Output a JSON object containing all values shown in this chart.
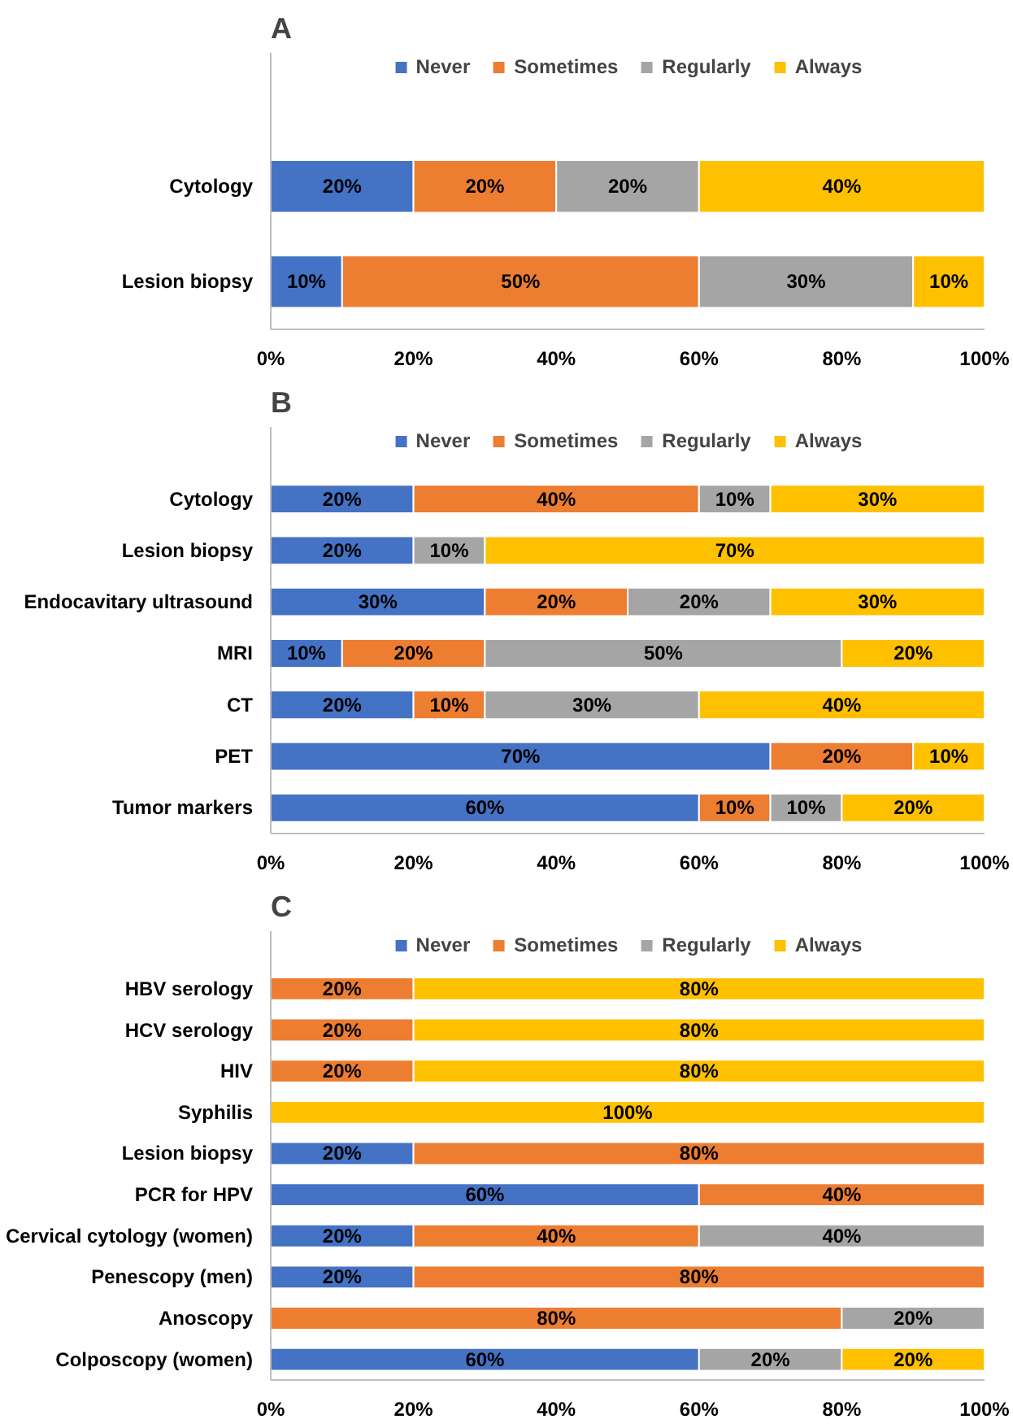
{
  "chart_data": [
    {
      "type": "bar",
      "title": "A",
      "orientation": "horizontal",
      "stacked": true,
      "legend": "top",
      "grid": false,
      "categories": [
        "Cytology",
        "Lesion biopsy"
      ],
      "xlim": [
        0,
        100
      ],
      "xticks": [
        {
          "value": 0,
          "label": "0%"
        },
        {
          "value": 20,
          "label": "20%"
        },
        {
          "value": 40,
          "label": "40%"
        },
        {
          "value": 60,
          "label": "60%"
        },
        {
          "value": 80,
          "label": "80%"
        },
        {
          "value": 100,
          "label": "100%"
        }
      ],
      "series": [
        {
          "name": "Never",
          "color": "#4472c4",
          "values": [
            20,
            10
          ],
          "value_labels": [
            "20%",
            "10%"
          ]
        },
        {
          "name": "Sometimes",
          "color": "#ed7d31",
          "values": [
            20,
            50
          ],
          "value_labels": [
            "20%",
            "50%"
          ]
        },
        {
          "name": "Regularly",
          "color": "#a5a5a5",
          "values": [
            20,
            30
          ],
          "value_labels": [
            "20%",
            "30%"
          ]
        },
        {
          "name": "Always",
          "color": "#ffc000",
          "values": [
            40,
            10
          ],
          "value_labels": [
            "40%",
            "10%"
          ]
        }
      ]
    },
    {
      "type": "bar",
      "title": "B",
      "orientation": "horizontal",
      "stacked": true,
      "legend": "top",
      "grid": false,
      "categories": [
        "Cytology",
        "Lesion biopsy",
        "Endocavitary ultrasound",
        "MRI",
        "CT",
        "PET",
        "Tumor markers"
      ],
      "xlim": [
        0,
        100
      ],
      "xticks": [
        {
          "value": 0,
          "label": "0%"
        },
        {
          "value": 20,
          "label": "20%"
        },
        {
          "value": 40,
          "label": "40%"
        },
        {
          "value": 60,
          "label": "60%"
        },
        {
          "value": 80,
          "label": "80%"
        },
        {
          "value": 100,
          "label": "100%"
        }
      ],
      "series": [
        {
          "name": "Never",
          "color": "#4472c4",
          "values": [
            20,
            20,
            30,
            10,
            20,
            70,
            60
          ],
          "value_labels": [
            "20%",
            "20%",
            "30%",
            "10%",
            "20%",
            "70%",
            "60%"
          ]
        },
        {
          "name": "Sometimes",
          "color": "#ed7d31",
          "values": [
            40,
            0,
            20,
            20,
            10,
            20,
            10
          ],
          "value_labels": [
            "40%",
            null,
            "20%",
            "20%",
            "10%",
            "20%",
            "10%"
          ]
        },
        {
          "name": "Regularly",
          "color": "#a5a5a5",
          "values": [
            10,
            10,
            20,
            50,
            30,
            0,
            10
          ],
          "value_labels": [
            "10%",
            "10%",
            "20%",
            "50%",
            "30%",
            null,
            "10%"
          ]
        },
        {
          "name": "Always",
          "color": "#ffc000",
          "values": [
            30,
            70,
            30,
            20,
            40,
            10,
            20
          ],
          "value_labels": [
            "30%",
            "70%",
            "30%",
            "20%",
            "40%",
            "10%",
            "20%"
          ]
        }
      ]
    },
    {
      "type": "bar",
      "title": "C",
      "orientation": "horizontal",
      "stacked": true,
      "legend": "top",
      "grid": false,
      "categories": [
        "HBV serology",
        "HCV serology",
        "HIV",
        "Syphilis",
        "Lesion biopsy",
        "PCR for HPV",
        "Cervical cytology (women)",
        "Penescopy (men)",
        "Anoscopy",
        "Colposcopy (women)"
      ],
      "xlim": [
        0,
        100
      ],
      "xticks": [
        {
          "value": 0,
          "label": "0%"
        },
        {
          "value": 20,
          "label": "20%"
        },
        {
          "value": 40,
          "label": "40%"
        },
        {
          "value": 60,
          "label": "60%"
        },
        {
          "value": 80,
          "label": "80%"
        },
        {
          "value": 100,
          "label": "100%"
        }
      ],
      "series": [
        {
          "name": "Never",
          "color": "#4472c4",
          "values": [
            0,
            0,
            0,
            0,
            20,
            60,
            20,
            20,
            0,
            60
          ],
          "value_labels": [
            null,
            null,
            null,
            null,
            "20%",
            "60%",
            "20%",
            "20%",
            null,
            "60%"
          ]
        },
        {
          "name": "Sometimes",
          "color": "#ed7d31",
          "values": [
            20,
            20,
            20,
            0,
            80,
            40,
            40,
            80,
            80,
            0
          ],
          "value_labels": [
            "20%",
            "20%",
            "20%",
            null,
            "80%",
            "40%",
            "40%",
            "80%",
            "80%",
            null
          ]
        },
        {
          "name": "Regularly",
          "color": "#a5a5a5",
          "values": [
            0,
            0,
            0,
            0,
            0,
            0,
            40,
            0,
            20,
            20
          ],
          "value_labels": [
            null,
            null,
            null,
            null,
            null,
            null,
            "40%",
            null,
            "20%",
            "20%"
          ]
        },
        {
          "name": "Always",
          "color": "#ffc000",
          "values": [
            80,
            80,
            80,
            100,
            0,
            0,
            0,
            0,
            0,
            20
          ],
          "value_labels": [
            "80%",
            "80%",
            "80%",
            "100%",
            null,
            null,
            null,
            null,
            null,
            "20%"
          ]
        }
      ]
    }
  ]
}
